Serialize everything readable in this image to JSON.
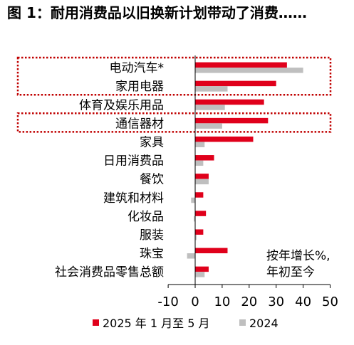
{
  "figure": {
    "title": "图 1：耐用消费品以旧换新计划带动了消费……",
    "annotation_line1": "按年增长%,",
    "annotation_line2": "年初至今"
  },
  "chart_data": {
    "type": "bar",
    "orientation": "horizontal",
    "categories": [
      "电动汽车*",
      "家用电器",
      "体育及娱乐用品",
      "通信器材",
      "家具",
      "日用消费品",
      "餐饮",
      "建筑和材料",
      "化妆品",
      "服装",
      "珠宝",
      "社会消费品零售总额"
    ],
    "series": [
      {
        "name": "2025 年 1 月至 5 月",
        "color": "#e0001b",
        "values": [
          34,
          30,
          25.5,
          27,
          21.5,
          7,
          5,
          3,
          4,
          3,
          12,
          5
        ]
      },
      {
        "name": "2024",
        "color": "#bfbfbf",
        "values": [
          40,
          12,
          11,
          10,
          3.5,
          3,
          5,
          -1.5,
          -0.5,
          0.5,
          -3,
          3.5
        ]
      }
    ],
    "highlighted_categories": [
      "电动汽车*",
      "家用电器",
      "通信器材"
    ],
    "xlim": [
      -10,
      50
    ],
    "xticks": [
      "-10",
      "0",
      "10",
      "20",
      "30",
      "40",
      "50"
    ],
    "legend_position": "bottom",
    "grid": false
  }
}
